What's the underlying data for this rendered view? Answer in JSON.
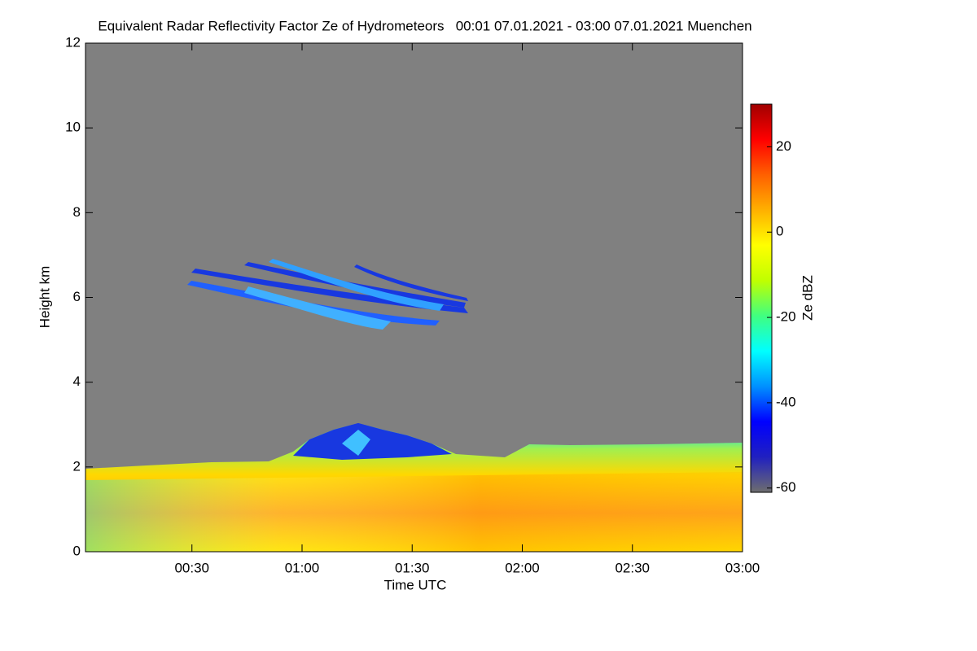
{
  "chart_data": {
    "type": "heatmap",
    "title": "Equivalent Radar Reflectivity Factor Ze of Hydrometeors   00:01 07.01.2021 - 03:00 07.01.2021 Muenchen",
    "x_label": "Time UTC",
    "y_label": "Height km",
    "colorbar_label": "Ze dBZ",
    "xlim": [
      1,
      180
    ],
    "xticks": [
      {
        "value": 30,
        "label": "00:30"
      },
      {
        "value": 60,
        "label": "01:00"
      },
      {
        "value": 90,
        "label": "01:30"
      },
      {
        "value": 120,
        "label": "02:00"
      },
      {
        "value": 150,
        "label": "02:30"
      },
      {
        "value": 180,
        "label": "03:00"
      }
    ],
    "ylim": [
      0,
      12
    ],
    "yticks": [
      0,
      2,
      4,
      6,
      8,
      10,
      12
    ],
    "colorbar_lim": [
      -61,
      30
    ],
    "colorbar_ticks": [
      -60,
      -40,
      -20,
      0,
      20
    ],
    "colormap": [
      "#6e6e6e",
      "#2020c0",
      "#0000ff",
      "#0090ff",
      "#00ffff",
      "#40ff80",
      "#c0ff00",
      "#ffff00",
      "#ffb000",
      "#ff6000",
      "#ff0000",
      "#a00000"
    ]
  }
}
